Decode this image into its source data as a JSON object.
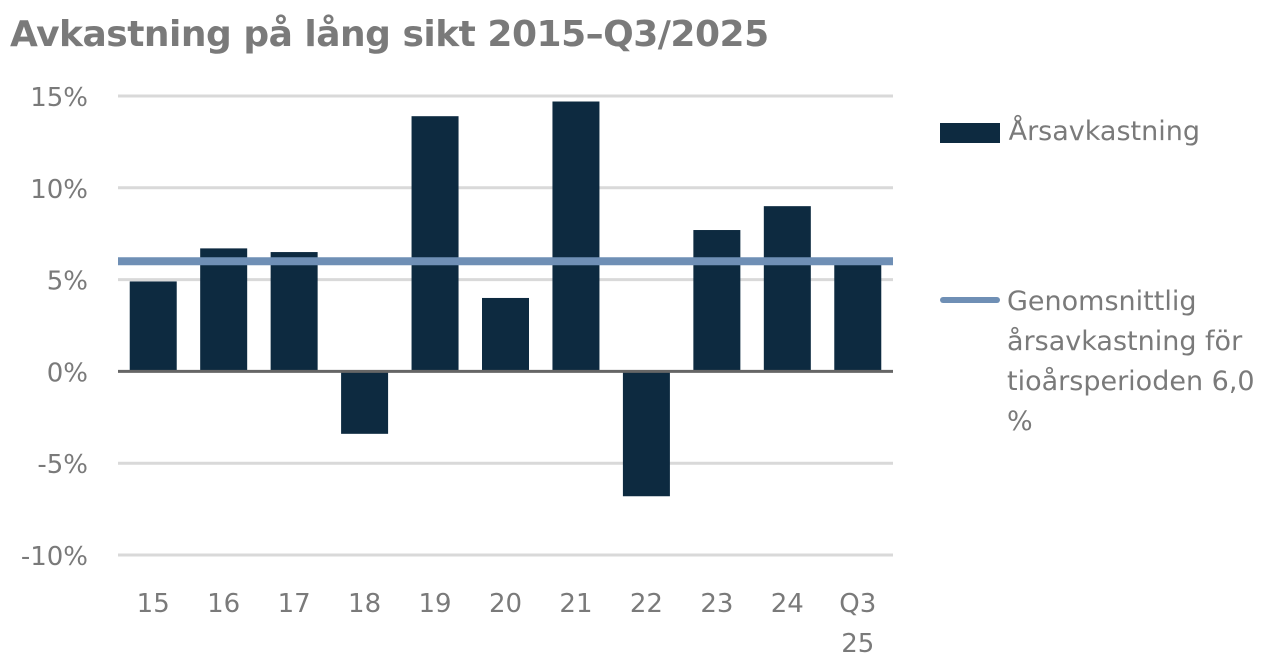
{
  "chart_data": {
    "type": "bar",
    "title": "Avkastning på lång sikt 2015–Q3/2025",
    "categories": [
      "15",
      "16",
      "17",
      "18",
      "19",
      "20",
      "21",
      "22",
      "23",
      "24",
      "Q3\n25"
    ],
    "series": [
      {
        "name": "Årsavkastning",
        "type": "bar",
        "color": "#0d2a40",
        "values": [
          4.9,
          6.7,
          6.5,
          -3.4,
          13.9,
          4.0,
          14.7,
          -6.8,
          7.7,
          9.0,
          6.0
        ]
      },
      {
        "name": "Genomsnittlig årsavkastning för tioårsperioden 6,0 %",
        "type": "line",
        "color": "#6f8fb5",
        "values": [
          6.0,
          6.0,
          6.0,
          6.0,
          6.0,
          6.0,
          6.0,
          6.0,
          6.0,
          6.0,
          6.0
        ]
      }
    ],
    "yticks": [
      "15%",
      "10%",
      "5%",
      "0%",
      "-5%",
      "-10%"
    ],
    "ytick_values": [
      15,
      10,
      5,
      0,
      -5,
      -10
    ],
    "ylim": [
      -10,
      15
    ],
    "grid": true,
    "legend": "right"
  }
}
